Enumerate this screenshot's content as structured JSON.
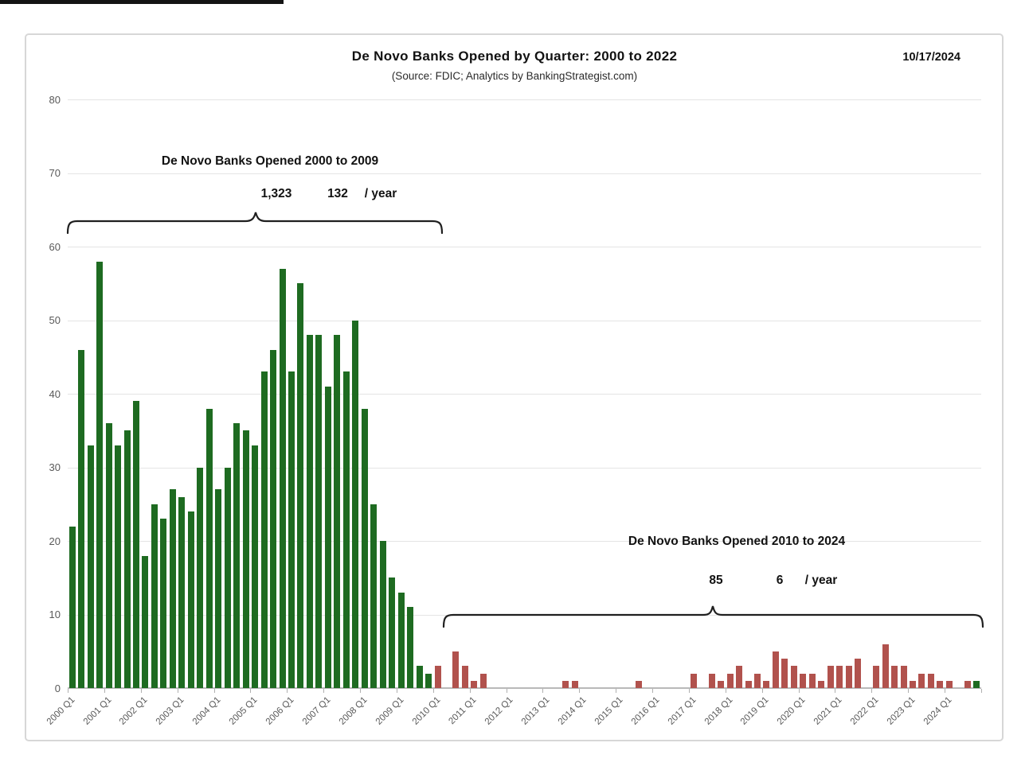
{
  "header": {
    "title": "De Novo Banks Opened by Quarter: 2000 to 2022",
    "subtitle": "(Source: FDIC; Analytics by BankingStrategist.com)",
    "date": "10/17/2024"
  },
  "annotations": {
    "early": {
      "heading": "De Novo Banks Opened 2000 to 2009",
      "total": "1,323",
      "rate": "132",
      "rate_suffix": "/ year"
    },
    "late": {
      "heading": "De Novo Banks Opened 2010 to 2024",
      "total": "85",
      "rate": "6",
      "rate_suffix": "/ year"
    }
  },
  "chart_data": {
    "type": "bar",
    "title": "De Novo Banks Opened by Quarter: 2000 to 2022",
    "xlabel": "",
    "ylabel": "",
    "ylim": [
      0,
      80
    ],
    "grid": true,
    "legend": "none",
    "y_ticks": [
      0,
      10,
      20,
      30,
      40,
      50,
      60,
      70,
      80
    ],
    "x_tick_labels": [
      "2000 Q1",
      "2001 Q1",
      "2002 Q1",
      "2003 Q1",
      "2004 Q1",
      "2005 Q1",
      "2006 Q1",
      "2007 Q1",
      "2008 Q1",
      "2009 Q1",
      "2010 Q1",
      "2011 Q1",
      "2012 Q1",
      "2013 Q1",
      "2014 Q1",
      "2015 Q1",
      "2016 Q1",
      "2017 Q1",
      "2018 Q1",
      "2019 Q1",
      "2020 Q1",
      "2021 Q1",
      "2022 Q1",
      "2023 Q1",
      "2024 Q1"
    ],
    "categories": [
      "2000 Q1",
      "2000 Q2",
      "2000 Q3",
      "2000 Q4",
      "2001 Q1",
      "2001 Q2",
      "2001 Q3",
      "2001 Q4",
      "2002 Q1",
      "2002 Q2",
      "2002 Q3",
      "2002 Q4",
      "2003 Q1",
      "2003 Q2",
      "2003 Q3",
      "2003 Q4",
      "2004 Q1",
      "2004 Q2",
      "2004 Q3",
      "2004 Q4",
      "2005 Q1",
      "2005 Q2",
      "2005 Q3",
      "2005 Q4",
      "2006 Q1",
      "2006 Q2",
      "2006 Q3",
      "2006 Q4",
      "2007 Q1",
      "2007 Q2",
      "2007 Q3",
      "2007 Q4",
      "2008 Q1",
      "2008 Q2",
      "2008 Q3",
      "2008 Q4",
      "2009 Q1",
      "2009 Q2",
      "2009 Q3",
      "2009 Q4",
      "2010 Q1",
      "2010 Q2",
      "2010 Q3",
      "2010 Q4",
      "2011 Q1",
      "2011 Q2",
      "2011 Q3",
      "2011 Q4",
      "2012 Q1",
      "2012 Q2",
      "2012 Q3",
      "2012 Q4",
      "2013 Q1",
      "2013 Q2",
      "2013 Q3",
      "2013 Q4",
      "2014 Q1",
      "2014 Q2",
      "2014 Q3",
      "2014 Q4",
      "2015 Q1",
      "2015 Q2",
      "2015 Q3",
      "2015 Q4",
      "2016 Q1",
      "2016 Q2",
      "2016 Q3",
      "2016 Q4",
      "2017 Q1",
      "2017 Q2",
      "2017 Q3",
      "2017 Q4",
      "2018 Q1",
      "2018 Q2",
      "2018 Q3",
      "2018 Q4",
      "2019 Q1",
      "2019 Q2",
      "2019 Q3",
      "2019 Q4",
      "2020 Q1",
      "2020 Q2",
      "2020 Q3",
      "2020 Q4",
      "2021 Q1",
      "2021 Q2",
      "2021 Q3",
      "2021 Q4",
      "2022 Q1",
      "2022 Q2",
      "2022 Q3",
      "2022 Q4",
      "2023 Q1",
      "2023 Q2",
      "2023 Q3",
      "2023 Q4",
      "2024 Q1",
      "2024 Q2",
      "2024 Q3",
      "2024 Q4"
    ],
    "values": [
      22,
      46,
      33,
      58,
      36,
      33,
      35,
      39,
      18,
      25,
      23,
      27,
      26,
      24,
      30,
      38,
      27,
      30,
      36,
      35,
      33,
      43,
      46,
      57,
      43,
      55,
      48,
      48,
      41,
      48,
      43,
      50,
      38,
      25,
      20,
      15,
      13,
      11,
      3,
      2,
      3,
      0,
      5,
      3,
      1,
      2,
      0,
      0,
      0,
      0,
      0,
      0,
      0,
      0,
      1,
      1,
      0,
      0,
      0,
      0,
      0,
      0,
      1,
      0,
      0,
      0,
      0,
      0,
      2,
      0,
      2,
      1,
      2,
      3,
      1,
      2,
      1,
      5,
      4,
      3,
      2,
      2,
      1,
      3,
      3,
      3,
      4,
      0,
      3,
      6,
      3,
      3,
      1,
      2,
      2,
      1,
      1,
      0,
      1,
      1
    ],
    "bar_colors": [
      "g",
      "g",
      "g",
      "g",
      "g",
      "g",
      "g",
      "g",
      "g",
      "g",
      "g",
      "g",
      "g",
      "g",
      "g",
      "g",
      "g",
      "g",
      "g",
      "g",
      "g",
      "g",
      "g",
      "g",
      "g",
      "g",
      "g",
      "g",
      "g",
      "g",
      "g",
      "g",
      "g",
      "g",
      "g",
      "g",
      "g",
      "g",
      "g",
      "g",
      "r",
      "r",
      "r",
      "r",
      "r",
      "r",
      "r",
      "r",
      "r",
      "r",
      "r",
      "r",
      "r",
      "r",
      "r",
      "r",
      "r",
      "r",
      "r",
      "r",
      "r",
      "r",
      "r",
      "r",
      "r",
      "r",
      "r",
      "r",
      "r",
      "r",
      "r",
      "r",
      "r",
      "r",
      "r",
      "r",
      "r",
      "r",
      "r",
      "r",
      "r",
      "r",
      "r",
      "r",
      "r",
      "r",
      "r",
      "r",
      "r",
      "r",
      "r",
      "r",
      "r",
      "r",
      "r",
      "r",
      "r",
      "r",
      "r",
      "g"
    ],
    "group_totals": {
      "2000_to_2009": 1323,
      "2010_to_2024": 85
    },
    "colors": {
      "bar_green": "#1e6b21",
      "bar_red": "#b1524d",
      "gridline": "#e4e4e4",
      "axis": "#b9b9b9",
      "tick_label": "#595959",
      "brace": "#1f1f1f"
    }
  }
}
